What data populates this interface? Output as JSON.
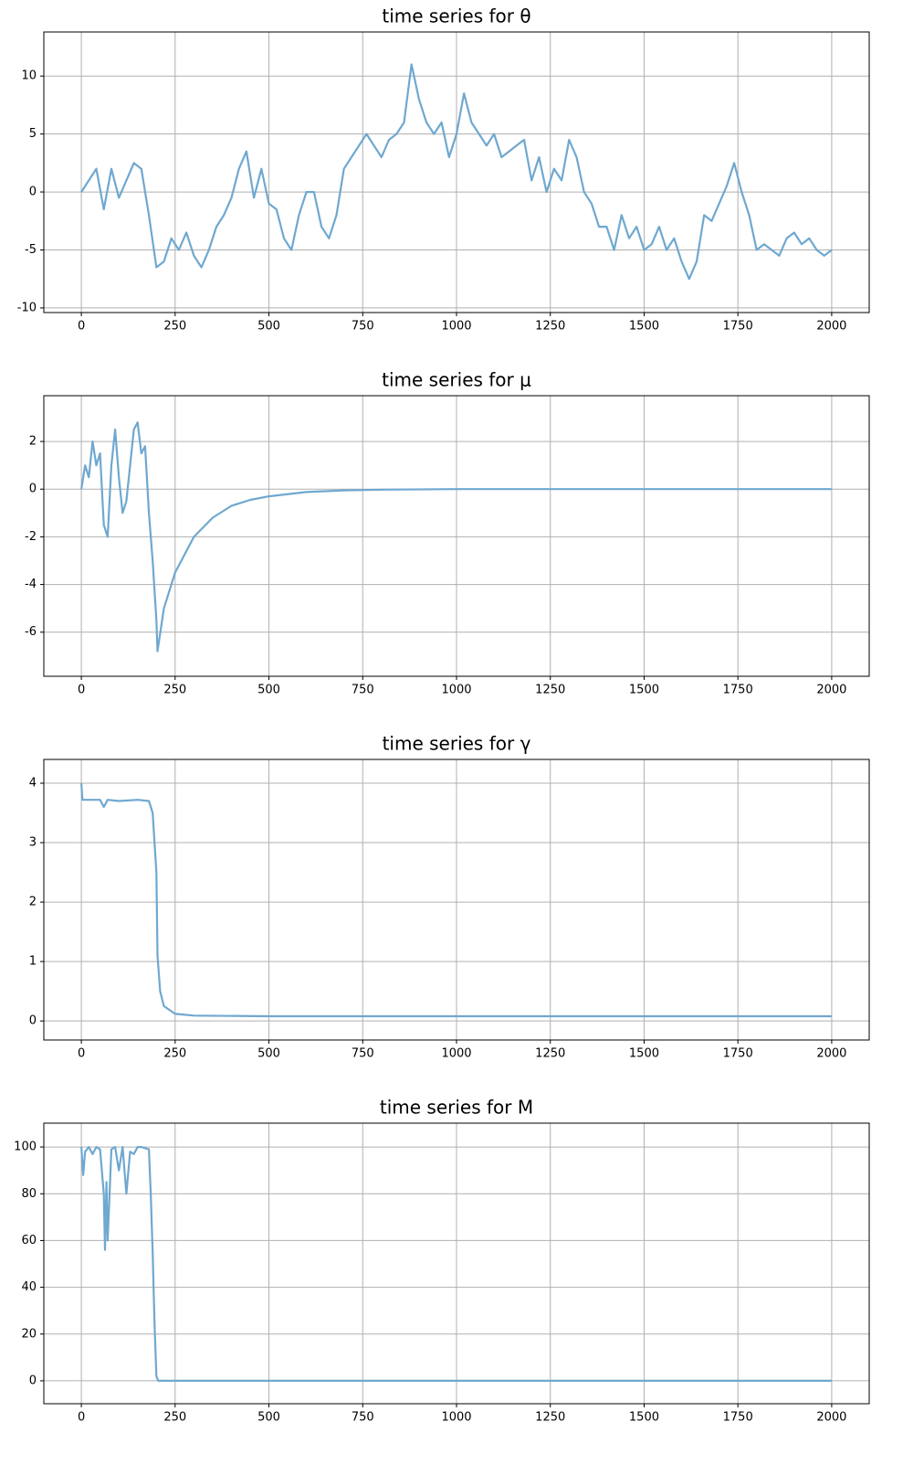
{
  "chart_data": [
    {
      "type": "line",
      "title": "time series for θ",
      "color": "#6fa8d0",
      "grid": true,
      "xlim": [
        -100,
        2100
      ],
      "xticks": [
        0,
        250,
        500,
        750,
        1000,
        1250,
        1500,
        1750,
        2000
      ],
      "ylim": [
        -10.4,
        13.8
      ],
      "yticks": [
        -10,
        -5,
        0,
        5,
        10
      ],
      "x": [
        0,
        20,
        40,
        60,
        80,
        100,
        120,
        140,
        160,
        180,
        200,
        220,
        240,
        260,
        280,
        300,
        320,
        340,
        360,
        380,
        400,
        420,
        440,
        460,
        480,
        500,
        520,
        540,
        560,
        580,
        600,
        620,
        640,
        660,
        680,
        700,
        720,
        740,
        760,
        780,
        800,
        820,
        840,
        860,
        880,
        900,
        920,
        940,
        960,
        980,
        1000,
        1020,
        1040,
        1060,
        1080,
        1100,
        1120,
        1140,
        1160,
        1180,
        1200,
        1220,
        1240,
        1260,
        1280,
        1300,
        1320,
        1340,
        1360,
        1380,
        1400,
        1420,
        1440,
        1460,
        1480,
        1500,
        1520,
        1540,
        1560,
        1580,
        1600,
        1620,
        1640,
        1660,
        1680,
        1700,
        1720,
        1740,
        1760,
        1780,
        1800,
        1820,
        1840,
        1860,
        1880,
        1900,
        1920,
        1940,
        1960,
        1980,
        2000
      ],
      "values": [
        0,
        1,
        2,
        -1.5,
        2,
        -0.5,
        1,
        2.5,
        2,
        -2,
        -6.5,
        -6,
        -4,
        -5,
        -3.5,
        -5.5,
        -6.5,
        -5,
        -3,
        -2,
        -0.5,
        2,
        3.5,
        -0.5,
        2,
        -1,
        -1.5,
        -4,
        -5,
        -2,
        0,
        0,
        -3,
        -4,
        -2,
        2,
        3,
        4,
        5,
        4,
        3,
        4.5,
        5,
        6,
        11,
        8,
        6,
        5,
        6,
        3,
        5,
        8.5,
        6,
        5,
        4,
        5,
        3,
        3.5,
        4,
        4.5,
        1,
        3,
        0,
        2,
        1,
        4.5,
        3,
        0,
        -1,
        -3,
        -3,
        -5,
        -2,
        -4,
        -3,
        -5,
        -4.5,
        -3,
        -5,
        -4,
        -6,
        -7.5,
        -6,
        -2,
        -2.5,
        -1,
        0.5,
        2.5,
        0,
        -2,
        -5,
        -4.5,
        -5,
        -5.5,
        -4,
        -3.5,
        -4.5,
        -4,
        -5,
        -5.5,
        -5
      ]
    },
    {
      "type": "line",
      "title": "time series for μ",
      "color": "#6fa8d0",
      "grid": true,
      "xlim": [
        -100,
        2100
      ],
      "xticks": [
        0,
        250,
        500,
        750,
        1000,
        1250,
        1500,
        1750,
        2000
      ],
      "ylim": [
        -7.85,
        3.92
      ],
      "yticks": [
        -6,
        -4,
        -2,
        0,
        2
      ],
      "x": [
        0,
        10,
        20,
        30,
        40,
        50,
        60,
        70,
        80,
        90,
        100,
        110,
        120,
        130,
        140,
        150,
        160,
        170,
        180,
        190,
        200,
        203,
        220,
        250,
        300,
        350,
        400,
        450,
        500,
        600,
        700,
        800,
        1000,
        1500,
        2000
      ],
      "values": [
        0,
        1,
        0.5,
        2,
        1,
        1.5,
        -1.5,
        -2,
        1,
        2.5,
        0.5,
        -1,
        -0.5,
        1,
        2.5,
        2.8,
        1.5,
        1.8,
        -1,
        -3,
        -5.5,
        -6.8,
        -5,
        -3.5,
        -2,
        -1.2,
        -0.7,
        -0.45,
        -0.3,
        -0.12,
        -0.05,
        -0.02,
        0,
        0,
        0
      ]
    },
    {
      "type": "line",
      "title": "time series for γ",
      "color": "#6fa8d0",
      "grid": true,
      "xlim": [
        -100,
        2100
      ],
      "xticks": [
        0,
        250,
        500,
        750,
        1000,
        1250,
        1500,
        1750,
        2000
      ],
      "ylim": [
        -0.32,
        4.4
      ],
      "yticks": [
        0,
        1,
        2,
        3,
        4
      ],
      "x": [
        0,
        3,
        50,
        60,
        70,
        100,
        150,
        180,
        190,
        200,
        203,
        210,
        220,
        250,
        300,
        500,
        2000
      ],
      "values": [
        4,
        3.72,
        3.72,
        3.6,
        3.72,
        3.7,
        3.72,
        3.7,
        3.5,
        2.5,
        1.1,
        0.5,
        0.25,
        0.12,
        0.09,
        0.08,
        0.08
      ]
    },
    {
      "type": "line",
      "title": "time series for M",
      "color": "#6fa8d0",
      "grid": true,
      "xlim": [
        -100,
        2100
      ],
      "xticks": [
        0,
        250,
        500,
        750,
        1000,
        1250,
        1500,
        1750,
        2000
      ],
      "ylim": [
        -9.8,
        110.2
      ],
      "yticks": [
        0,
        20,
        40,
        60,
        80,
        100
      ],
      "x": [
        0,
        5,
        10,
        20,
        30,
        40,
        50,
        60,
        63,
        67,
        70,
        80,
        90,
        100,
        110,
        120,
        130,
        140,
        150,
        160,
        180,
        185,
        190,
        195,
        200,
        205,
        2000
      ],
      "values": [
        100,
        88,
        98,
        100,
        97,
        100,
        99,
        80,
        56,
        85,
        60,
        99,
        100,
        90,
        100,
        80,
        98,
        97,
        100,
        100,
        99,
        80,
        55,
        25,
        2,
        0,
        0
      ]
    }
  ]
}
